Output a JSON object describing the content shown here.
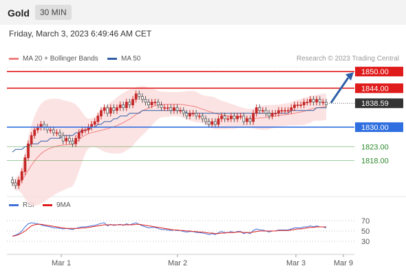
{
  "header": {
    "instrument": "Gold",
    "interval_label": "30 MIN"
  },
  "timestamp": "Friday, March 3, 2023 6:49:46 AM CET",
  "credit": "Research © 2023 Trading Central",
  "colors": {
    "price_up": "#e01b1b",
    "price_down": "#c0c0c0",
    "ma20": "#f08080",
    "ma50": "#2d5ea6",
    "support": "#2f6fe0",
    "green_level": "#2a8a2a",
    "rsi": "#3f6fd8",
    "rsi_ma": "#e01b1b"
  },
  "legend": {
    "ma20_label": "MA 20 + Bollinger Bands",
    "ma50_label": "MA 50",
    "rsi_label": "RSI",
    "rsi_ma_label": "9MA"
  },
  "chart_data": [
    {
      "type": "candlestick",
      "title": "",
      "ylim": [
        1806,
        1852
      ],
      "last_price": 1838.59,
      "levels": [
        {
          "value": 1850.0,
          "label": "1850.00",
          "kind": "resistance",
          "color": "#e01b1b"
        },
        {
          "value": 1844.0,
          "label": "1844.00",
          "kind": "resistance",
          "color": "#e01b1b"
        },
        {
          "value": 1838.59,
          "label": "1838.59",
          "kind": "last",
          "color": "#333333"
        },
        {
          "value": 1830.0,
          "label": "1830.00",
          "kind": "pivot",
          "color": "#2f6fe0"
        },
        {
          "value": 1823.0,
          "label": "1823.00",
          "kind": "support",
          "color": "#2a8a2a"
        },
        {
          "value": 1818.0,
          "label": "1818.00",
          "kind": "support",
          "color": "#2a8a2a"
        }
      ],
      "close": [
        1810,
        1809,
        1811,
        1814,
        1819,
        1824,
        1827,
        1829,
        1830,
        1831,
        1830,
        1829,
        1829,
        1828,
        1828,
        1827,
        1825,
        1826,
        1825,
        1824,
        1826,
        1828,
        1829,
        1829,
        1830,
        1831,
        1832,
        1834,
        1836,
        1837,
        1835,
        1837,
        1836,
        1837,
        1838,
        1837,
        1839,
        1838,
        1840,
        1842,
        1841,
        1840,
        1839,
        1838,
        1839,
        1839,
        1838,
        1837,
        1837,
        1837,
        1836,
        1837,
        1836,
        1836,
        1835,
        1834,
        1835,
        1835,
        1834,
        1834,
        1833,
        1832,
        1831,
        1832,
        1831,
        1833,
        1834,
        1833,
        1833,
        1834,
        1833,
        1834,
        1834,
        1832,
        1833,
        1832,
        1835,
        1837,
        1836,
        1836,
        1835,
        1834,
        1835,
        1835,
        1836,
        1836,
        1836,
        1836,
        1837,
        1838,
        1838,
        1838,
        1839,
        1839,
        1840,
        1839,
        1840,
        1839,
        1839,
        1838
      ],
      "ma50": [
        1821,
        1822,
        1822,
        1822,
        1823,
        1823,
        1824,
        1824,
        1824,
        1825,
        1825,
        1825,
        1826,
        1826,
        1826,
        1826,
        1827,
        1827,
        1827,
        1827,
        1828,
        1828,
        1829,
        1829,
        1829,
        1830,
        1830,
        1831,
        1831,
        1832,
        1832,
        1832,
        1833,
        1833,
        1834,
        1834,
        1834,
        1835,
        1835,
        1835,
        1835,
        1836,
        1836,
        1836,
        1836,
        1836,
        1836,
        1836,
        1836,
        1836,
        1836,
        1836,
        1836,
        1836,
        1836,
        1835,
        1835,
        1835,
        1835,
        1835,
        1835,
        1835,
        1835,
        1835,
        1835,
        1835,
        1835,
        1835,
        1835,
        1835,
        1835,
        1835,
        1835,
        1835,
        1835,
        1835,
        1835,
        1835,
        1835,
        1835,
        1835,
        1835,
        1835,
        1835,
        1835,
        1835,
        1835,
        1835,
        1836,
        1836,
        1836,
        1836,
        1836,
        1836,
        1836,
        1836,
        1837,
        1837,
        1837,
        1837
      ],
      "forecast_path": [
        1838.5,
        1850
      ]
    },
    {
      "type": "line",
      "title": "",
      "ylim": [
        10,
        90
      ],
      "yticks": [
        70,
        50,
        30
      ],
      "series": [
        {
          "name": "RSI",
          "values": [
            40,
            42,
            45,
            50,
            58,
            64,
            66,
            65,
            64,
            62,
            60,
            59,
            58,
            56,
            56,
            55,
            54,
            55,
            54,
            53,
            55,
            57,
            58,
            58,
            59,
            60,
            61,
            63,
            65,
            66,
            60,
            63,
            61,
            62,
            63,
            61,
            64,
            62,
            64,
            66,
            63,
            60,
            58,
            56,
            57,
            57,
            55,
            53,
            53,
            52,
            51,
            52,
            51,
            51,
            49,
            48,
            49,
            49,
            47,
            47,
            46,
            45,
            43,
            45,
            43,
            47,
            49,
            47,
            47,
            49,
            47,
            49,
            49,
            45,
            47,
            45,
            51,
            54,
            52,
            52,
            50,
            48,
            50,
            50,
            52,
            52,
            52,
            52,
            54,
            56,
            56,
            56,
            58,
            58,
            60,
            58,
            60,
            58,
            58,
            56
          ]
        },
        {
          "name": "9MA",
          "values": [
            40,
            41,
            43,
            46,
            50,
            55,
            60,
            62,
            63,
            63,
            62,
            61,
            60,
            59,
            58,
            57,
            56,
            55,
            55,
            55,
            55,
            55,
            56,
            56,
            57,
            58,
            59,
            60,
            61,
            62,
            62,
            62,
            62,
            62,
            62,
            62,
            62,
            62,
            62,
            63,
            63,
            62,
            61,
            60,
            59,
            58,
            57,
            56,
            55,
            54,
            53,
            52,
            52,
            51,
            51,
            50,
            50,
            49,
            49,
            48,
            48,
            47,
            46,
            46,
            45,
            45,
            46,
            46,
            47,
            47,
            47,
            48,
            48,
            47,
            47,
            47,
            48,
            49,
            50,
            50,
            50,
            50,
            50,
            50,
            51,
            51,
            51,
            51,
            52,
            53,
            54,
            54,
            55,
            56,
            57,
            57,
            58,
            58,
            58,
            58
          ]
        }
      ]
    }
  ],
  "x_labels": [
    "Mar 1",
    "Mar 2",
    "Mar 3",
    "Mar 9"
  ]
}
